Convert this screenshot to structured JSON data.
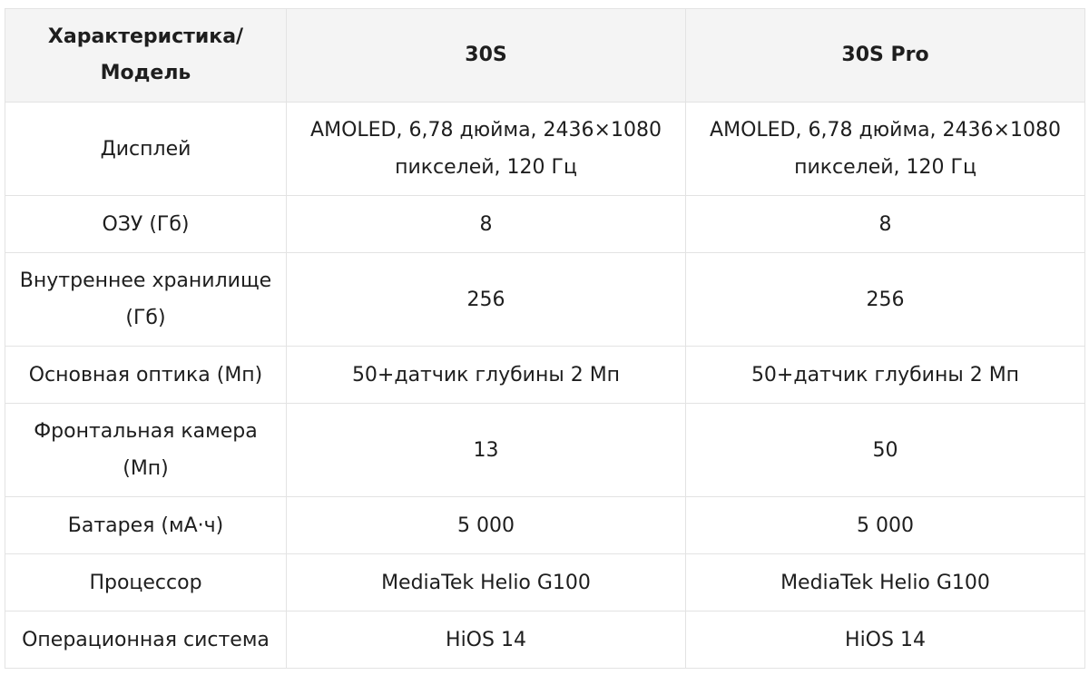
{
  "table": {
    "headers": [
      "Характеристика/ Модель",
      "30S",
      "30S Pro"
    ],
    "rows": [
      [
        "Дисплей",
        "AMOLED, 6,78 дюйма, 2436×1080 пикселей, 120 Гц",
        "AMOLED, 6,78 дюйма, 2436×1080 пикселей, 120 Гц"
      ],
      [
        "ОЗУ (Гб)",
        "8",
        "8"
      ],
      [
        "Внутреннее хранилище (Гб)",
        "256",
        "256"
      ],
      [
        "Основная оптика (Мп)",
        "50+датчик глубины 2 Мп",
        "50+датчик глубины 2 Мп"
      ],
      [
        "Фронтальная камера (Мп)",
        "13",
        "50"
      ],
      [
        "Батарея (мА·ч)",
        "5 000",
        "5 000"
      ],
      [
        "Процессор",
        "MediaTek Helio G100",
        "MediaTek Helio G100"
      ],
      [
        "Операционная система",
        "HiOS 14",
        "HiOS 14"
      ]
    ]
  }
}
